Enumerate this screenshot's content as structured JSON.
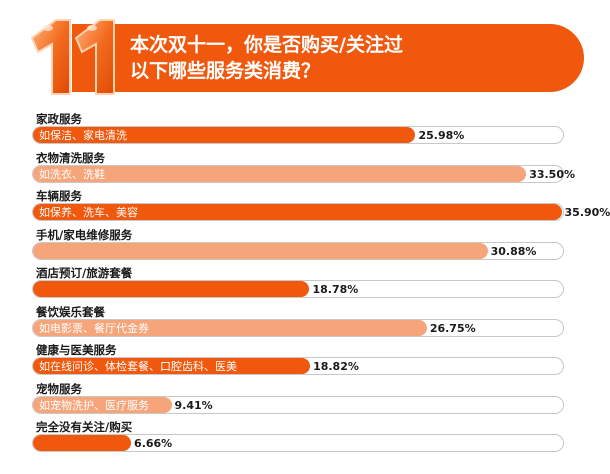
{
  "header": {
    "title_line1": "本次双十一，你是否购买/关注过",
    "title_line2": "以下哪些服务类消费？",
    "logo_text": "11",
    "colors": {
      "accent": "#f0580e",
      "accent_light": "#f6a57a"
    }
  },
  "chart_data": {
    "type": "bar",
    "orientation": "horizontal",
    "title": "本次双十一，你是否购买/关注过以下哪些服务类消费？",
    "categories": [
      "家政服务",
      "衣物清洗服务",
      "车辆服务",
      "手机/家电维修服务",
      "酒店预订/旅游套餐",
      "餐饮娱乐套餐",
      "健康与医美服务",
      "宠物服务",
      "完全没有关注/购买"
    ],
    "subtitles": [
      "如保洁、家电清洗",
      "如洗衣、洗鞋",
      "如保养、洗车、美容",
      "",
      "",
      "如电影票、餐厅代金券",
      "如在线问诊、体检套餐、口腔齿科、医美",
      "如宠物洗护、医疗服务",
      ""
    ],
    "values": [
      25.98,
      33.5,
      35.9,
      30.88,
      18.78,
      26.75,
      18.82,
      9.41,
      6.66
    ],
    "value_labels": [
      "25.98%",
      "33.50%",
      "35.90%",
      "30.88%",
      "18.78%",
      "26.75%",
      "18.82%",
      "9.41%",
      "6.66%"
    ],
    "xlim": [
      0,
      36
    ],
    "grid": false,
    "legend": "none"
  }
}
